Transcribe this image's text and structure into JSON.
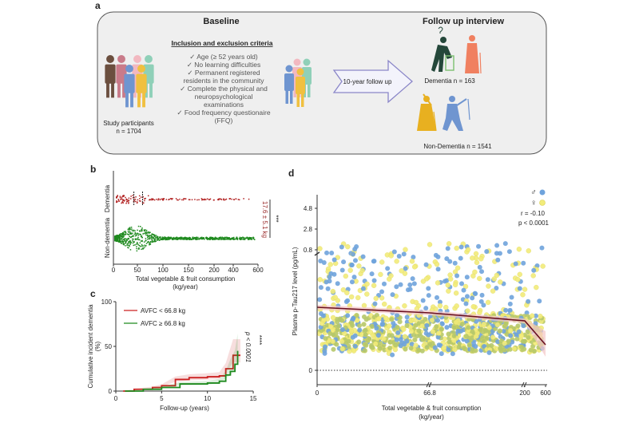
{
  "panel_a": {
    "label": "a",
    "baseline_title": "Baseline",
    "criteria_title": "Inclusion and exclusion criteria",
    "criteria": [
      "✓  Age (≥ 52 years old)",
      "✓  No learning difficulties",
      "✓  Permanent registered",
      "residents in the community",
      "✓  Complete the physical and",
      "neuropsychological",
      "examinations",
      "✓  Food frequency questionaire",
      "(FFQ)"
    ],
    "participants_label": "Study participants",
    "participants_n": "n = 1704",
    "arrow_label": "10-year follow up",
    "followup_title": "Follow up interview",
    "dementia_label": "Dementia n = 163",
    "nondementia_label": "Non-Dementia n = 1541",
    "person_colors": [
      "#6b4f3f",
      "#c97b8a",
      "#f2b8c0",
      "#8fd0b8",
      "#6f95d0",
      "#f0c040"
    ]
  },
  "chart_data": [
    {
      "panel": "b",
      "type": "scatter",
      "subtype": "beeswarm",
      "categories": [
        "Dementia",
        "Non-dementia"
      ],
      "xlabel": "Total vegetable & fruit consumption",
      "xlabel2": "(kg/year)",
      "xticks": [
        "0",
        "50",
        "100",
        "150",
        "200",
        "400",
        "600"
      ],
      "colors": {
        "Dementia": "#b22222",
        "Non-dementia": "#1f8a1f"
      },
      "median_markers": {
        "Dementia": [
          40,
          57
        ]
      },
      "annotation": "17.6 ± 5.1 kg",
      "significance": "***"
    },
    {
      "panel": "c",
      "type": "line",
      "subtype": "cumulative incidence",
      "xlabel": "Follow-up (years)",
      "ylabel": "Cumulative incident dementia",
      "ylabel2": "(%)",
      "xlim": [
        0,
        15
      ],
      "ylim": [
        0,
        100
      ],
      "xticks": [
        "0",
        "5",
        "10",
        "15"
      ],
      "yticks": [
        "0",
        "50",
        "100"
      ],
      "series": [
        {
          "name": "AVFC < 66.8 kg",
          "color": "#cc2222",
          "x": [
            0.8,
            2,
            4,
            5,
            6.5,
            8,
            10,
            11.3,
            12,
            12.8,
            13.6
          ],
          "y": [
            0,
            2,
            4,
            6,
            13,
            15,
            16,
            17,
            25,
            40,
            40
          ]
        },
        {
          "name": "AVFC ≥ 66.8 kg",
          "color": "#1e8a1e",
          "x": [
            1,
            3,
            5,
            7,
            10,
            11.3,
            12,
            12.5,
            13,
            13.3
          ],
          "y": [
            0,
            2,
            4,
            8,
            9,
            11,
            18,
            22,
            30,
            45
          ]
        }
      ],
      "p_value": "p < 0.0001",
      "significance": "****"
    },
    {
      "panel": "d",
      "type": "scatter",
      "xlabel": "Total vegetable & fruit consumption",
      "xlabel2": "(kg/year)",
      "ylabel": "Plasma p-Tau217 level (pg/mL)",
      "xticks": [
        "0",
        "66.8",
        "200",
        "600"
      ],
      "yticks": [
        "0",
        "0.8",
        "2.8",
        "4.8"
      ],
      "axis_breaks": {
        "x": [
          66.8,
          200
        ],
        "y": [
          0.8
        ]
      },
      "legend": [
        {
          "symbol": "♂",
          "color": "#6fa3dc"
        },
        {
          "symbol": "♀",
          "color": "#f2ec7a"
        }
      ],
      "legend_position": "top-right",
      "fit_line": {
        "x": [
          0,
          66.8,
          200,
          600
        ],
        "color": "#6b1020",
        "band_color": "#f4c6c6"
      },
      "r": "r = -0.10",
      "p_value": "p < 0.0001",
      "zero_line": "dotted"
    }
  ]
}
